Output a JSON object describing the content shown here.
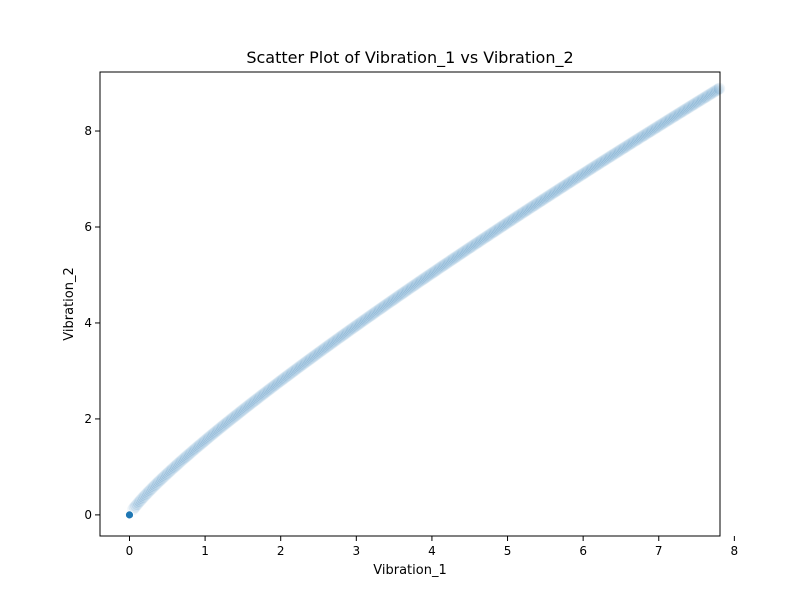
{
  "chart_data": {
    "type": "scatter",
    "title": "Scatter Plot of Vibration_1 vs Vibration_2",
    "xlabel": "Vibration_1",
    "ylabel": "Vibration_2",
    "xlim": [
      -0.39,
      7.81
    ],
    "ylim": [
      -0.44,
      9.23
    ],
    "xticks": [
      0,
      1,
      2,
      3,
      4,
      5,
      6,
      7,
      8
    ],
    "yticks": [
      0,
      2,
      4,
      6,
      8
    ],
    "grid": false,
    "legend": "none",
    "colors": {
      "outlier_point": "#1f77b4",
      "trail_point": "#1f77b4",
      "trail_opacity": 0.08,
      "axis": "#000000"
    },
    "series": [
      {
        "curve": {
          "x_start": 0.05,
          "x_end": 7.8,
          "points": 460,
          "a": 1.55,
          "b": 0.85
        },
        "extra_points": [
          {
            "x": 0.0,
            "y": 0.0
          }
        ]
      }
    ]
  }
}
